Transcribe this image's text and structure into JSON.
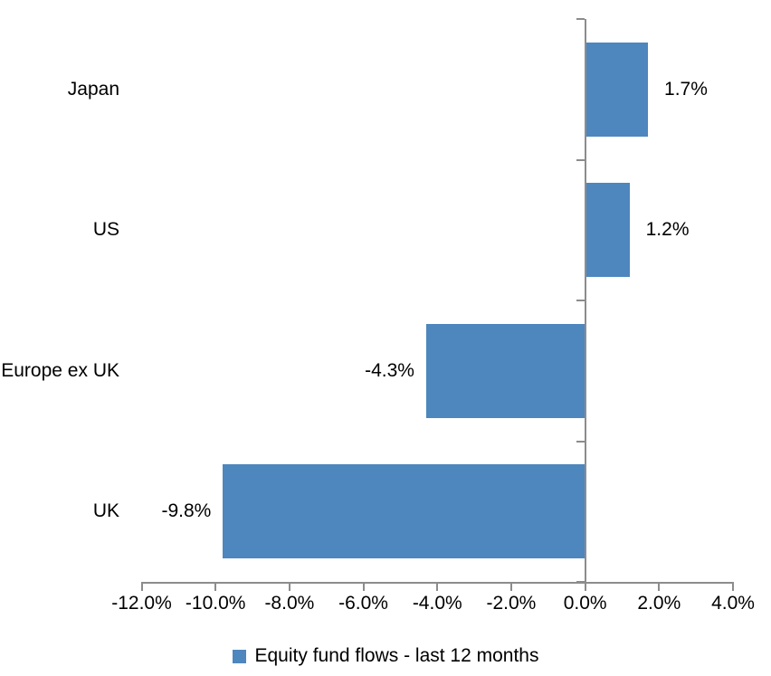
{
  "chart_data": {
    "type": "bar",
    "orientation": "horizontal",
    "categories": [
      "Japan",
      "US",
      "Europe ex UK",
      "UK"
    ],
    "series": [
      {
        "name": "Equity fund flows - last 12 months",
        "values": [
          1.7,
          1.2,
          -4.3,
          -9.8
        ],
        "value_labels": [
          "1.7%",
          "1.2%",
          "-4.3%",
          "-9.8%"
        ]
      }
    ],
    "xlim": [
      -12,
      4
    ],
    "x_tick_values": [
      -12,
      -10,
      -8,
      -6,
      -4,
      -2,
      0,
      2,
      4
    ],
    "x_tick_labels": [
      "-12.0%",
      "-10.0%",
      "-8.0%",
      "-6.0%",
      "-4.0%",
      "-2.0%",
      "0.0%",
      "2.0%",
      "4.0%"
    ],
    "grid": false,
    "legend_position": "bottom",
    "colors": {
      "bar": "#4E86BE",
      "axis": "#8C8C8C",
      "text": "#000000",
      "background": "#FFFFFF"
    }
  }
}
